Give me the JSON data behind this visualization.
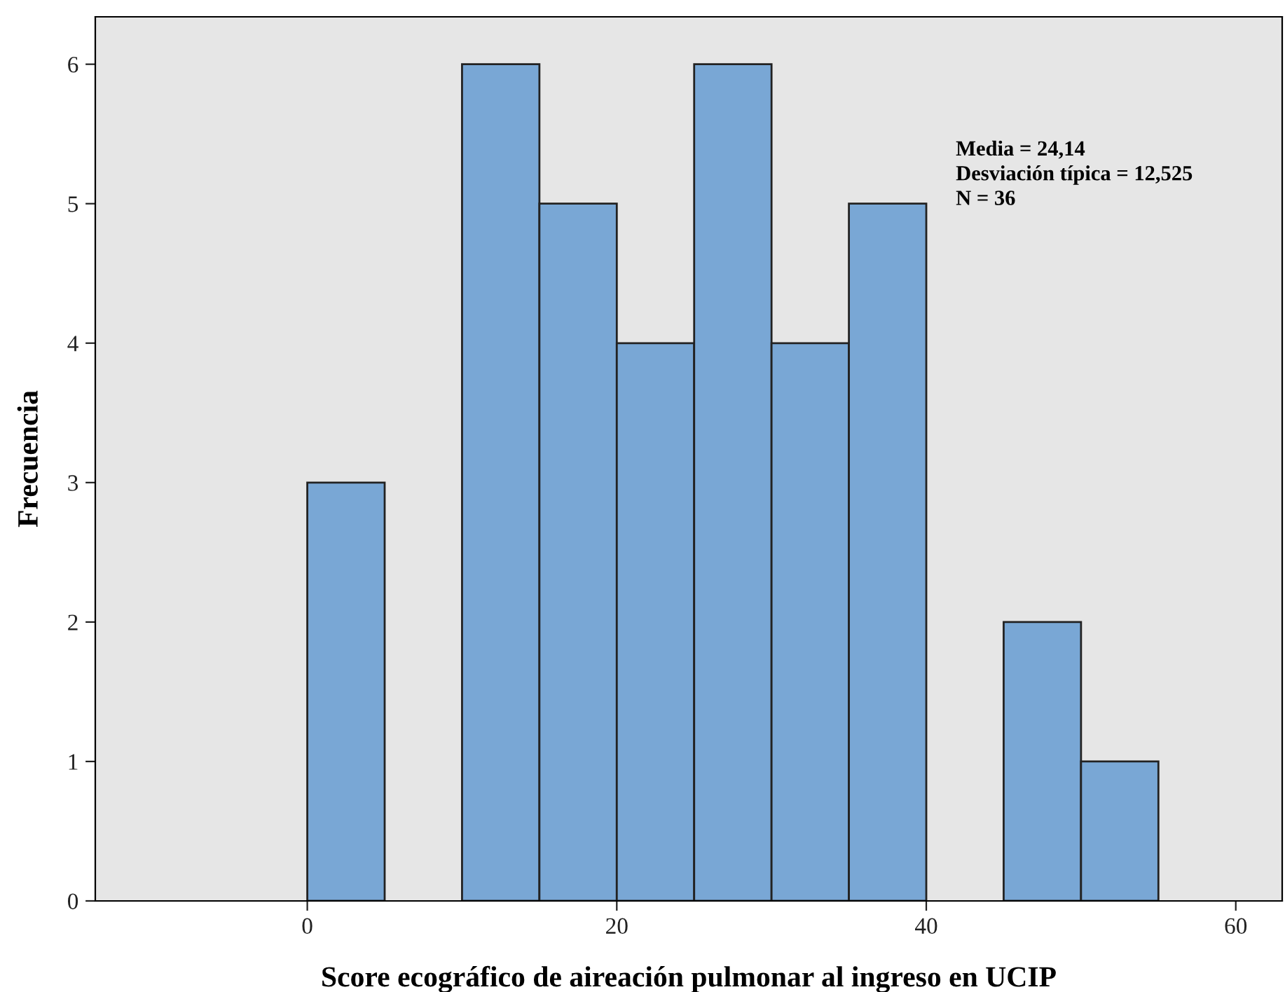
{
  "chart_data": {
    "type": "histogram",
    "xlabel": "Score ecográfico de aireación pulmonar al ingreso en UCIP",
    "ylabel": "Frecuencia",
    "bins": [
      0,
      5,
      10,
      15,
      20,
      25,
      30,
      35,
      40,
      45,
      50,
      55
    ],
    "values": [
      3,
      0,
      6,
      5,
      4,
      6,
      4,
      5,
      0,
      2,
      1
    ],
    "color": "#79a7d5",
    "xlim": [
      -13.7,
      63
    ],
    "ylim": [
      0,
      6.34
    ],
    "xticks": [
      0,
      20,
      40,
      60
    ],
    "yticks": [
      0,
      1,
      2,
      3,
      4,
      5,
      6
    ],
    "grid": false,
    "legend": false,
    "annotations": [
      "Media = 24,14",
      "Desviación típica = 12,525",
      "N = 36"
    ]
  }
}
